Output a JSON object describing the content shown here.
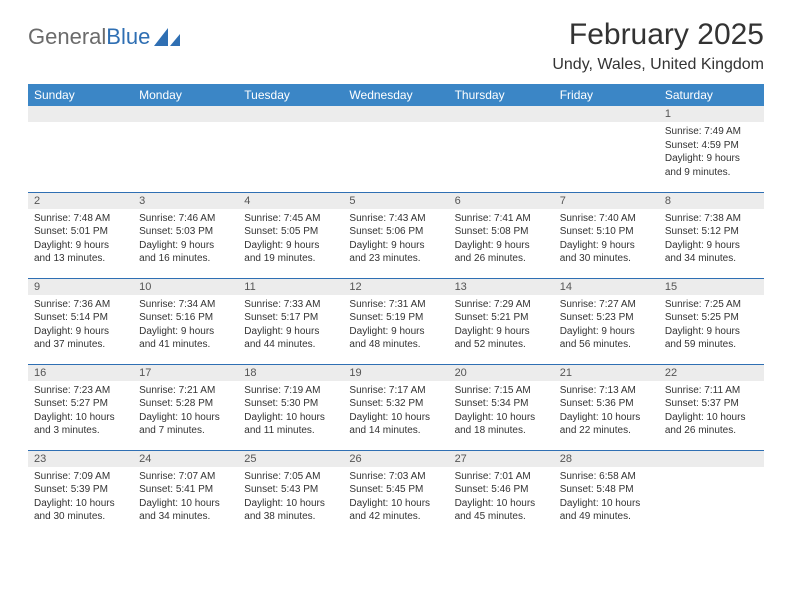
{
  "logo": {
    "text1": "General",
    "text2": "Blue"
  },
  "title": "February 2025",
  "location": "Undy, Wales, United Kingdom",
  "colors": {
    "header_bg": "#3b86c6",
    "header_text": "#ffffff",
    "rule": "#2f6fb3",
    "daynum_bg": "#ececec",
    "logo_gray": "#6b6b6b",
    "logo_blue": "#2f6fb3"
  },
  "day_headers": [
    "Sunday",
    "Monday",
    "Tuesday",
    "Wednesday",
    "Thursday",
    "Friday",
    "Saturday"
  ],
  "weeks": [
    [
      null,
      null,
      null,
      null,
      null,
      null,
      {
        "n": "1",
        "sunrise": "7:49 AM",
        "sunset": "4:59 PM",
        "daylight": "9 hours and 9 minutes."
      }
    ],
    [
      {
        "n": "2",
        "sunrise": "7:48 AM",
        "sunset": "5:01 PM",
        "daylight": "9 hours and 13 minutes."
      },
      {
        "n": "3",
        "sunrise": "7:46 AM",
        "sunset": "5:03 PM",
        "daylight": "9 hours and 16 minutes."
      },
      {
        "n": "4",
        "sunrise": "7:45 AM",
        "sunset": "5:05 PM",
        "daylight": "9 hours and 19 minutes."
      },
      {
        "n": "5",
        "sunrise": "7:43 AM",
        "sunset": "5:06 PM",
        "daylight": "9 hours and 23 minutes."
      },
      {
        "n": "6",
        "sunrise": "7:41 AM",
        "sunset": "5:08 PM",
        "daylight": "9 hours and 26 minutes."
      },
      {
        "n": "7",
        "sunrise": "7:40 AM",
        "sunset": "5:10 PM",
        "daylight": "9 hours and 30 minutes."
      },
      {
        "n": "8",
        "sunrise": "7:38 AM",
        "sunset": "5:12 PM",
        "daylight": "9 hours and 34 minutes."
      }
    ],
    [
      {
        "n": "9",
        "sunrise": "7:36 AM",
        "sunset": "5:14 PM",
        "daylight": "9 hours and 37 minutes."
      },
      {
        "n": "10",
        "sunrise": "7:34 AM",
        "sunset": "5:16 PM",
        "daylight": "9 hours and 41 minutes."
      },
      {
        "n": "11",
        "sunrise": "7:33 AM",
        "sunset": "5:17 PM",
        "daylight": "9 hours and 44 minutes."
      },
      {
        "n": "12",
        "sunrise": "7:31 AM",
        "sunset": "5:19 PM",
        "daylight": "9 hours and 48 minutes."
      },
      {
        "n": "13",
        "sunrise": "7:29 AM",
        "sunset": "5:21 PM",
        "daylight": "9 hours and 52 minutes."
      },
      {
        "n": "14",
        "sunrise": "7:27 AM",
        "sunset": "5:23 PM",
        "daylight": "9 hours and 56 minutes."
      },
      {
        "n": "15",
        "sunrise": "7:25 AM",
        "sunset": "5:25 PM",
        "daylight": "9 hours and 59 minutes."
      }
    ],
    [
      {
        "n": "16",
        "sunrise": "7:23 AM",
        "sunset": "5:27 PM",
        "daylight": "10 hours and 3 minutes."
      },
      {
        "n": "17",
        "sunrise": "7:21 AM",
        "sunset": "5:28 PM",
        "daylight": "10 hours and 7 minutes."
      },
      {
        "n": "18",
        "sunrise": "7:19 AM",
        "sunset": "5:30 PM",
        "daylight": "10 hours and 11 minutes."
      },
      {
        "n": "19",
        "sunrise": "7:17 AM",
        "sunset": "5:32 PM",
        "daylight": "10 hours and 14 minutes."
      },
      {
        "n": "20",
        "sunrise": "7:15 AM",
        "sunset": "5:34 PM",
        "daylight": "10 hours and 18 minutes."
      },
      {
        "n": "21",
        "sunrise": "7:13 AM",
        "sunset": "5:36 PM",
        "daylight": "10 hours and 22 minutes."
      },
      {
        "n": "22",
        "sunrise": "7:11 AM",
        "sunset": "5:37 PM",
        "daylight": "10 hours and 26 minutes."
      }
    ],
    [
      {
        "n": "23",
        "sunrise": "7:09 AM",
        "sunset": "5:39 PM",
        "daylight": "10 hours and 30 minutes."
      },
      {
        "n": "24",
        "sunrise": "7:07 AM",
        "sunset": "5:41 PM",
        "daylight": "10 hours and 34 minutes."
      },
      {
        "n": "25",
        "sunrise": "7:05 AM",
        "sunset": "5:43 PM",
        "daylight": "10 hours and 38 minutes."
      },
      {
        "n": "26",
        "sunrise": "7:03 AM",
        "sunset": "5:45 PM",
        "daylight": "10 hours and 42 minutes."
      },
      {
        "n": "27",
        "sunrise": "7:01 AM",
        "sunset": "5:46 PM",
        "daylight": "10 hours and 45 minutes."
      },
      {
        "n": "28",
        "sunrise": "6:58 AM",
        "sunset": "5:48 PM",
        "daylight": "10 hours and 49 minutes."
      },
      null
    ]
  ],
  "labels": {
    "sunrise": "Sunrise: ",
    "sunset": "Sunset: ",
    "daylight": "Daylight: "
  }
}
